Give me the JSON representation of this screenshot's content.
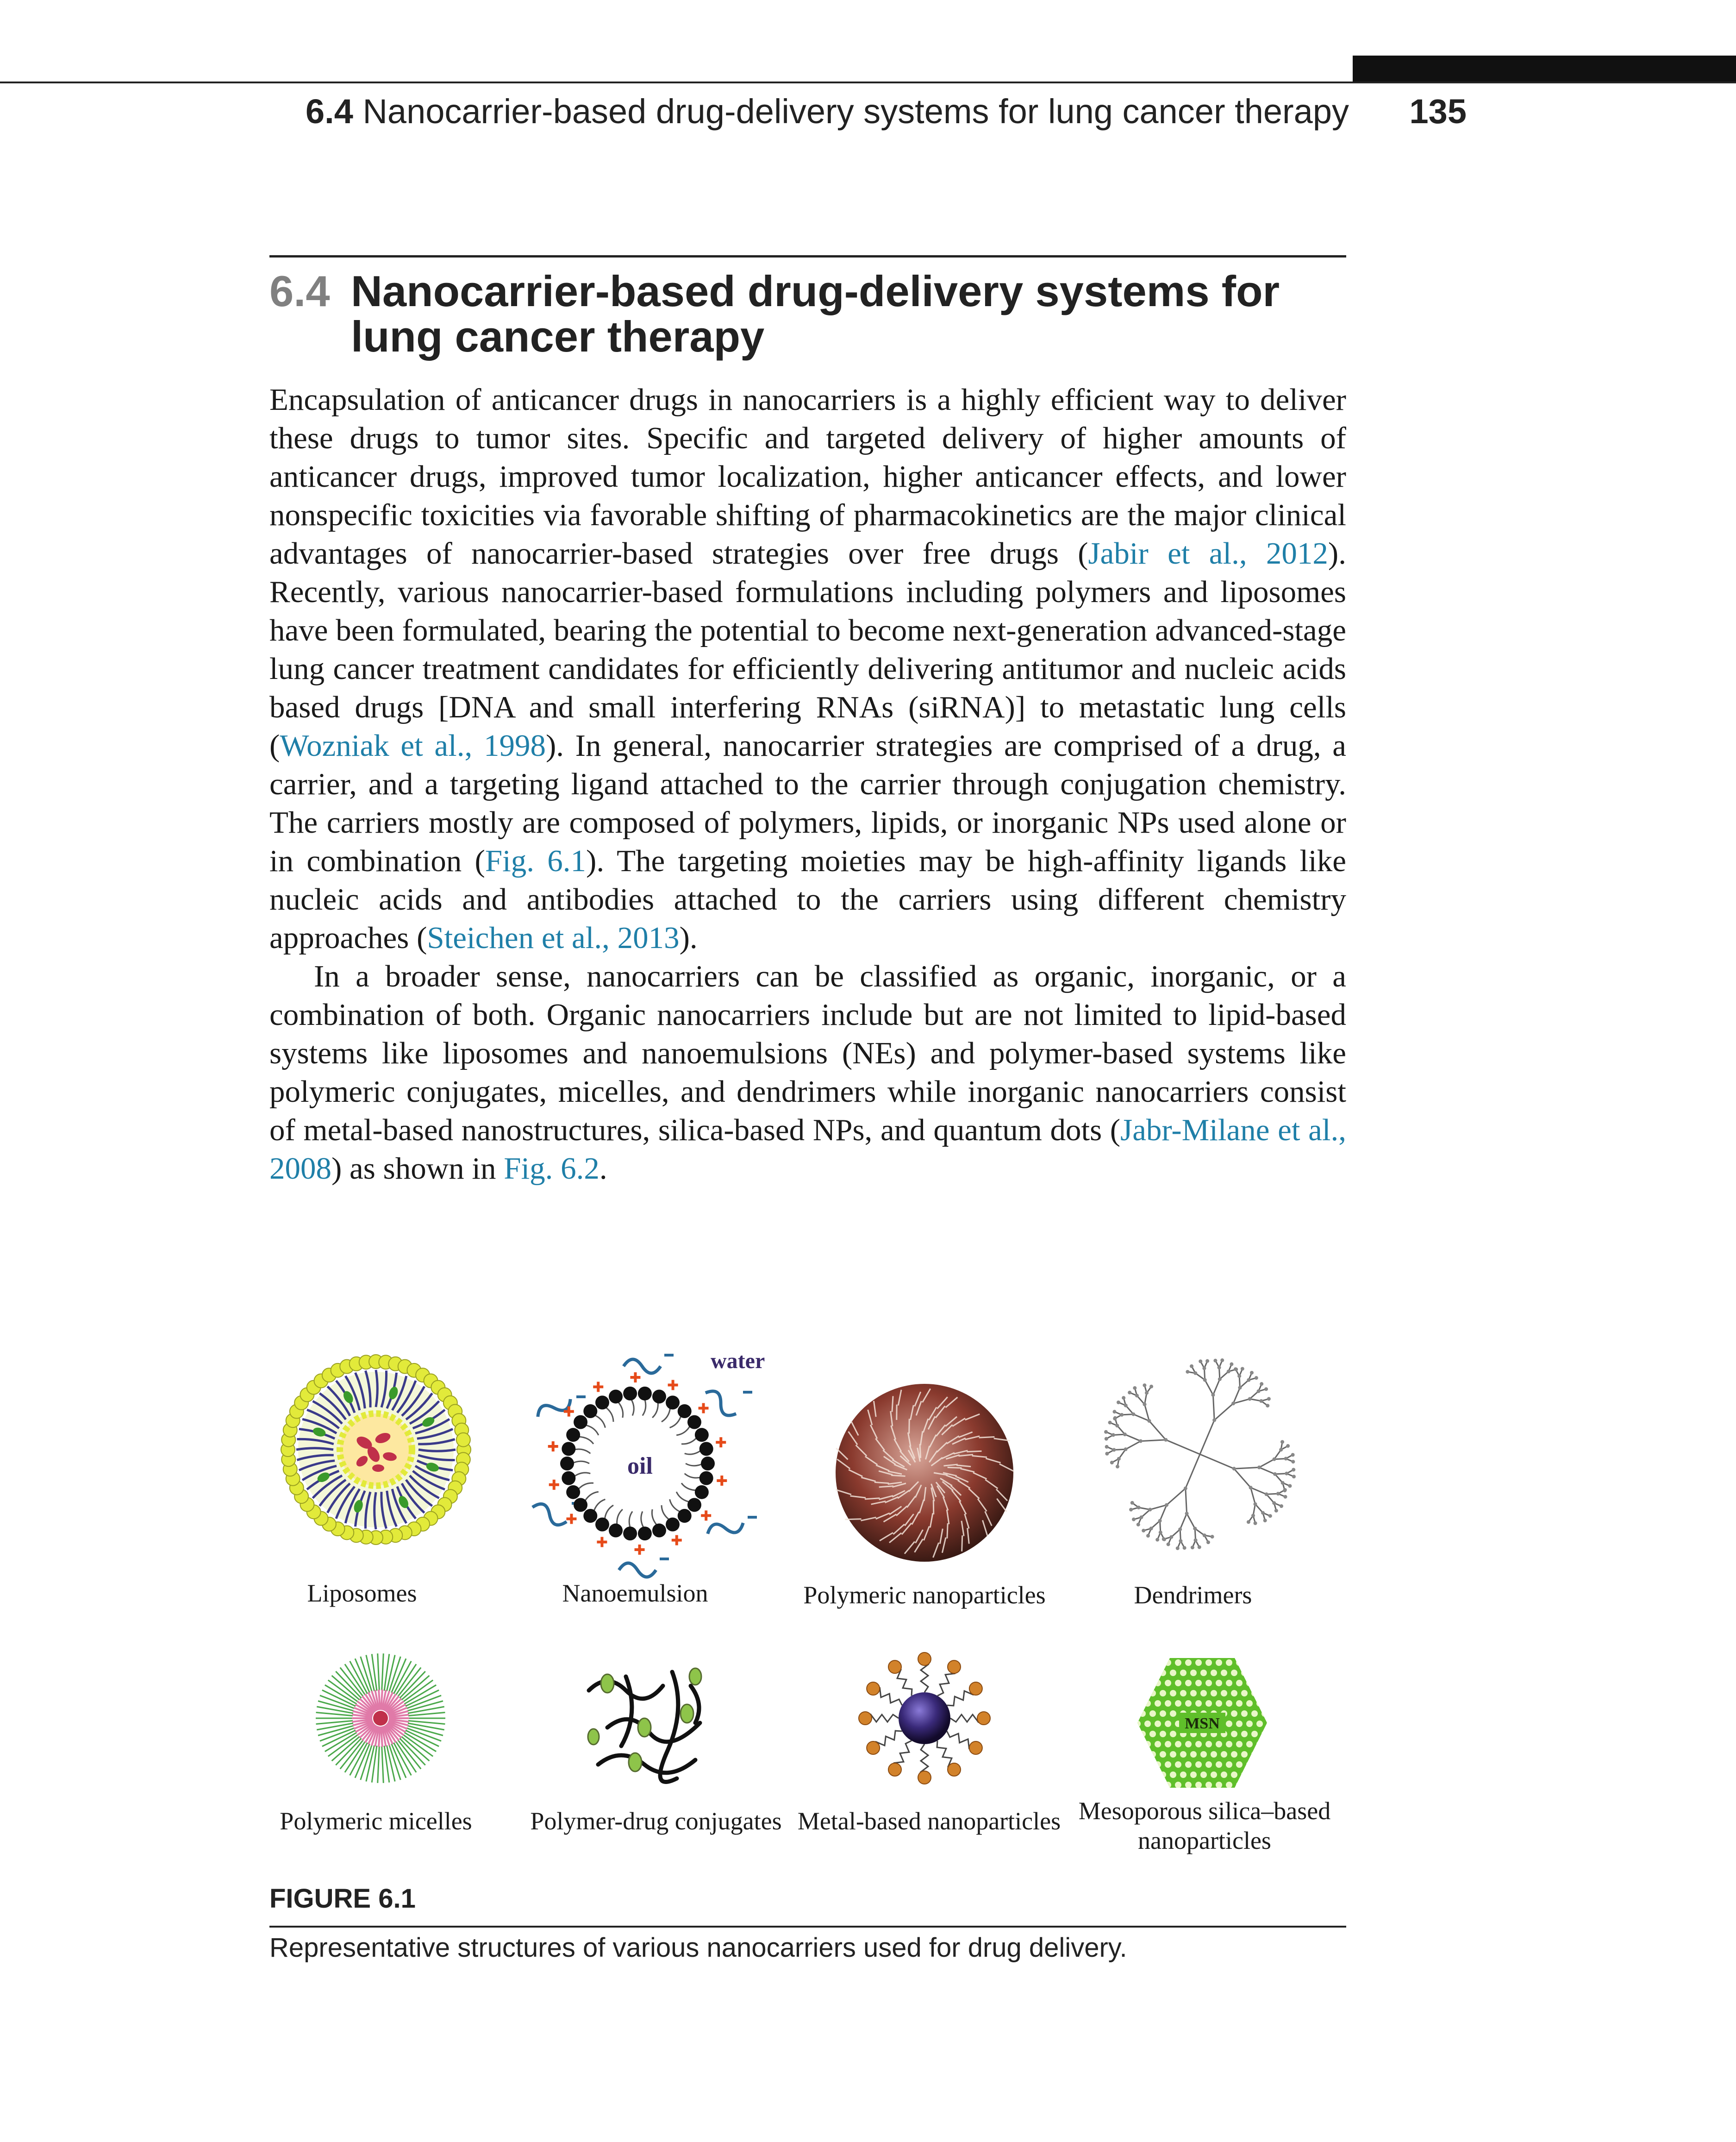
{
  "running_header": {
    "section_number": "6.4",
    "title": "Nanocarrier-based drug-delivery systems for lung cancer therapy",
    "page_number": "135"
  },
  "section": {
    "number": "6.4",
    "title": "Nanocarrier-based drug-delivery systems for lung cancer therapy"
  },
  "paragraph1": {
    "s1": "Encapsulation of anticancer drugs in nanocarriers is a highly efficient way to deliver these drugs to tumor sites. Specific and targeted delivery of higher amounts of anticancer drugs, improved tumor localization, higher anticancer effects, and lower nonspecific toxicities via favorable shifting of pharmacokinetics are the major clinical advantages of nanocarrier-based strategies over free drugs (",
    "c1": "Jabir et al., 2012",
    "s2": "). Recently, various nanocarrier-based formulations including polymers and liposomes have been formulated, bearing the potential to become next-generation advanced-stage lung cancer treatment candidates for efficiently delivering antitumor and nucleic acids based drugs [DNA and small interfering RNAs (siRNA)] to metastatic lung cells (",
    "c2": "Wozniak et al., 1998",
    "s3": "). In general, nanocarrier strategies are comprised of a drug, a carrier, and a targeting ligand attached to the carrier through conjugation chemistry. The carriers mostly are composed of polymers, lipids, or inorganic NPs used alone or in combination (",
    "c3": "Fig. 6.1",
    "s4": "). The targeting moieties may be high-affinity ligands like nucleic acids and antibodies attached to the carriers using different chemistry approaches (",
    "c4": "Steichen et al., 2013",
    "s5": ")."
  },
  "paragraph2": {
    "s1": "In a broader sense, nanocarriers can be classified as organic, inorganic, or a combination of both. Organic nanocarriers include but are not limited to lipid-based systems like liposomes and nanoemulsions (NEs) and polymer-based systems like polymeric conjugates, micelles, and dendrimers while inorganic nanocarriers consist of metal-based nanostructures, silica-based NPs, and quantum dots (",
    "c1": "Jabr-Milane et al., 2008",
    "s2": ") as shown in ",
    "c2": "Fig. 6.2",
    "s3": "."
  },
  "figure": {
    "label": "FIGURE 6.1",
    "caption": "Representative structures of various nanocarriers used for drug delivery.",
    "panels": {
      "liposomes": "Liposomes",
      "nanoemulsion": "Nanoemulsion",
      "nanoemulsion_water": "water",
      "nanoemulsion_oil": "oil",
      "polymeric_nanoparticles": "Polymeric nanoparticles",
      "dendrimers": "Dendrimers",
      "polymeric_micelles": "Polymeric micelles",
      "polymer_drug_conjugates": "Polymer-drug conjugates",
      "metal_nanoparticles": "Metal-based nanoparticles",
      "msn_line1": "Mesoporous silica–based",
      "msn_line2": "nanoparticles",
      "msn_badge": "MSN"
    }
  },
  "colors": {
    "citation": "#1f7fa8",
    "section_number": "#808080",
    "liposome_head": "#e2ea3a",
    "drug": "#c0304a",
    "silica": "#5fbf2a"
  }
}
